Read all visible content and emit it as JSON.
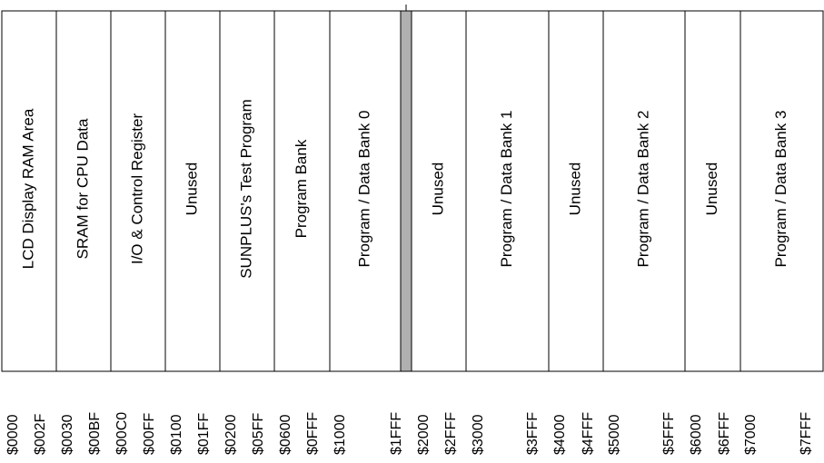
{
  "regions": [
    {
      "label": "LCD Display RAM Area"
    },
    {
      "label": "SRAM for CPU Data"
    },
    {
      "label": "I/O & Control Register"
    },
    {
      "label": "Unused"
    },
    {
      "label": "SUNPLUS's Test Program"
    },
    {
      "label": "Program Bank"
    },
    {
      "label": "Program / Data Bank 0"
    },
    {
      "label": "Unused"
    },
    {
      "label": "Program / Data Bank 1"
    },
    {
      "label": "Unused"
    },
    {
      "label": "Program / Data Bank 2"
    },
    {
      "label": "Unused"
    },
    {
      "label": "Program / Data Bank 3"
    }
  ],
  "addresses": [
    "$0000",
    "$002F",
    "$0030",
    "$00BF",
    "$00C0",
    "$00FF",
    "$0100",
    "$01FF",
    "$0200",
    "$05FF",
    "$0600",
    "$0FFF",
    "$1000",
    "$1FFF",
    "$2000",
    "$2FFF",
    "$3000",
    "$3FFF",
    "$4000",
    "$4FFF",
    "$5000",
    "$5FFF",
    "$6000",
    "$6FFF",
    "$7000",
    "$7FFF"
  ]
}
